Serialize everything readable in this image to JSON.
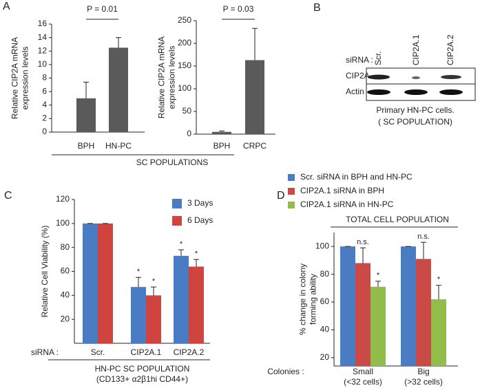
{
  "panel_labels": [
    "A",
    "B",
    "C",
    "D"
  ],
  "group_label": "SC POPULATIONS",
  "blot": {
    "row_label": "siRNA :",
    "lanes": [
      "Scr.",
      "CIP2A.1",
      "CIP2A.2"
    ],
    "bands": [
      "CIP2A",
      "Actin"
    ],
    "caption": [
      "Primary HN-PC cells.",
      "( SC POPULATION)"
    ]
  },
  "chart_data": [
    {
      "type": "bar",
      "y_label": [
        "Relative  CIP2A mRNA",
        "expression levels"
      ],
      "annotation": "P = 0.01",
      "categories": [
        "BPH",
        "HN-PC"
      ],
      "series": [
        {
          "color": "#5a5a5a",
          "values": [
            5,
            12.5
          ],
          "errors": [
            2.4,
            1.5
          ]
        }
      ],
      "ylim": [
        0,
        16
      ],
      "yticks": [
        0,
        2,
        4,
        6,
        8,
        10,
        12,
        14,
        16
      ]
    },
    {
      "type": "bar",
      "y_label": [
        "Relative  CIP2A mRNA",
        "expression levels"
      ],
      "annotation": "P = 0.03",
      "categories": [
        "BPH",
        "CRPC"
      ],
      "series": [
        {
          "color": "#5a5a5a",
          "values": [
            5,
            163
          ],
          "errors": [
            2,
            70
          ]
        }
      ],
      "ylim": [
        0,
        250
      ],
      "yticks": [
        0,
        50,
        100,
        150,
        200,
        250
      ]
    },
    {
      "type": "bar",
      "y_label": [
        "Relative Cell Viability (%)"
      ],
      "x_prefix": "siRNA :",
      "x_label": [
        "HN-PC SC POPULATION",
        "(CD133+ α2β1hi  CD44+)"
      ],
      "categories": [
        "Scr.",
        "CIP2A.1",
        "CIP2A.2"
      ],
      "series": [
        {
          "name": "3 Days",
          "color": "#4a7cc4",
          "values": [
            100,
            47,
            73
          ],
          "errors": [
            0,
            8,
            5
          ],
          "markers": [
            null,
            "*",
            "*"
          ]
        },
        {
          "name": "6 Days",
          "color": "#d0443f",
          "values": [
            100,
            40,
            64
          ],
          "errors": [
            0,
            7,
            6
          ],
          "markers": [
            null,
            "*",
            "*"
          ]
        }
      ],
      "ylim": [
        0,
        120
      ],
      "yticks": [
        20,
        40,
        60,
        80,
        100,
        120
      ]
    },
    {
      "type": "bar",
      "title": "TOTAL CELL POPULATION",
      "y_label": [
        "% change in colony",
        "forming ability"
      ],
      "x_prefix": "Colonies :",
      "categories": [
        "Small",
        "Big"
      ],
      "category_notes": [
        "(<32 cells)",
        "(>32 cells)"
      ],
      "series": [
        {
          "name": "Scr. siRNA in BPH and HN-PC",
          "color": "#4a7cc4",
          "values": [
            100,
            100
          ],
          "errors": [
            0,
            0
          ],
          "markers": [
            null,
            null
          ]
        },
        {
          "name": "CIP2A.1 siRNA in BPH",
          "color": "#c94a47",
          "values": [
            88,
            91
          ],
          "errors": [
            11,
            12
          ],
          "markers": [
            "n.s.",
            "n.s."
          ]
        },
        {
          "name": "CIP2A.1 siRNA in HN-PC",
          "color": "#93bd4a",
          "values": [
            71,
            62
          ],
          "errors": [
            4,
            10
          ],
          "markers": [
            "*",
            "*"
          ]
        }
      ],
      "ylim": [
        14,
        110
      ],
      "yticks": [
        20,
        40,
        60,
        80,
        100
      ]
    }
  ]
}
